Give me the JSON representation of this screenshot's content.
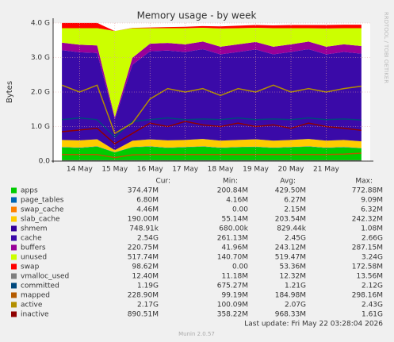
{
  "chart_data": {
    "type": "area",
    "title": "Memory usage - by week",
    "y_label": "Bytes",
    "side_label": "RRDTOOL / TOBI OETIKER",
    "categories": [
      null,
      "14 May",
      null,
      "15 May",
      null,
      "16 May",
      null,
      "17 May",
      null,
      "18 May",
      null,
      "19 May",
      null,
      "20 May",
      null,
      "21 May",
      null,
      null
    ],
    "ylim": [
      0,
      4
    ],
    "yticks": [
      {
        "value": 0,
        "label": "0.0"
      },
      {
        "value": 1,
        "label": "1.0 G"
      },
      {
        "value": 2,
        "label": "2.0 G"
      },
      {
        "value": 3,
        "label": "3.0 G"
      },
      {
        "value": 4,
        "label": "4.0 G"
      }
    ],
    "grid": true,
    "legend_headers": [
      "Cur:",
      "Min:",
      "Avg:",
      "Max:"
    ],
    "series": [
      {
        "name": "apps",
        "color": "#00cc00",
        "kind": "area",
        "values": [
          0.4,
          0.38,
          0.42,
          0.25,
          0.4,
          0.42,
          0.38,
          0.4,
          0.42,
          0.38,
          0.4,
          0.41,
          0.38,
          0.4,
          0.42,
          0.38,
          0.4,
          0.37
        ],
        "cur": "374.47M",
        "min": "200.84M",
        "avg": "429.50M",
        "max": "772.88M"
      },
      {
        "name": "page_tables",
        "color": "#0066b3",
        "kind": "area",
        "values": [
          0.007,
          0.007,
          0.007,
          0.005,
          0.007,
          0.007,
          0.007,
          0.007,
          0.007,
          0.007,
          0.007,
          0.007,
          0.007,
          0.007,
          0.007,
          0.007,
          0.007,
          0.007
        ],
        "cur": "6.80M",
        "min": "4.16M",
        "avg": "6.27M",
        "max": "9.09M"
      },
      {
        "name": "swap_cache",
        "color": "#ff8000",
        "kind": "area",
        "values": [
          0.004,
          0.004,
          0.004,
          0,
          0.002,
          0.003,
          0.004,
          0.004,
          0.004,
          0.004,
          0.004,
          0.004,
          0.004,
          0.004,
          0.004,
          0.004,
          0.004,
          0.004
        ],
        "cur": "4.46M",
        "min": "0.00",
        "avg": "2.15M",
        "max": "6.32M"
      },
      {
        "name": "slab_cache",
        "color": "#ffcc00",
        "kind": "area",
        "values": [
          0.2,
          0.21,
          0.2,
          0.06,
          0.18,
          0.2,
          0.21,
          0.2,
          0.21,
          0.2,
          0.2,
          0.21,
          0.2,
          0.2,
          0.21,
          0.2,
          0.2,
          0.19
        ],
        "cur": "190.00M",
        "min": "55.14M",
        "avg": "203.54M",
        "max": "242.32M"
      },
      {
        "name": "shmem",
        "color": "#330099",
        "kind": "area",
        "values": [
          0.001,
          0.001,
          0.001,
          0.001,
          0.001,
          0.001,
          0.001,
          0.001,
          0.001,
          0.001,
          0.001,
          0.001,
          0.001,
          0.001,
          0.001,
          0.001,
          0.001,
          0.001
        ],
        "cur": "748.91k",
        "min": "680.00k",
        "avg": "829.44k",
        "max": "1.08M"
      },
      {
        "name": "cache",
        "color": "#3a0aa8",
        "kind": "area",
        "values": [
          2.6,
          2.55,
          2.5,
          0.9,
          2.2,
          2.55,
          2.6,
          2.55,
          2.6,
          2.5,
          2.55,
          2.6,
          2.5,
          2.55,
          2.6,
          2.5,
          2.55,
          2.54
        ],
        "cur": "2.54G",
        "min": "261.13M",
        "avg": "2.45G",
        "max": "2.66G"
      },
      {
        "name": "buffers",
        "color": "#990099",
        "kind": "area",
        "values": [
          0.22,
          0.22,
          0.22,
          0.05,
          0.2,
          0.22,
          0.22,
          0.22,
          0.22,
          0.22,
          0.22,
          0.22,
          0.22,
          0.22,
          0.22,
          0.22,
          0.22,
          0.22
        ],
        "cur": "220.75M",
        "min": "41.96M",
        "avg": "243.12M",
        "max": "287.15M"
      },
      {
        "name": "unused",
        "color": "#ccff00",
        "kind": "area",
        "values": [
          0.42,
          0.48,
          0.5,
          2.5,
          0.86,
          0.45,
          0.43,
          0.47,
          0.4,
          0.53,
          0.47,
          0.41,
          0.54,
          0.47,
          0.39,
          0.53,
          0.47,
          0.52
        ],
        "cur": "517.74M",
        "min": "140.70M",
        "avg": "519.47M",
        "max": "3.24G"
      },
      {
        "name": "swap",
        "color": "#ff0000",
        "kind": "area",
        "values": [
          0.15,
          0.15,
          0.15,
          0,
          0.01,
          0.02,
          0.03,
          0.04,
          0.05,
          0.06,
          0.07,
          0.08,
          0.08,
          0.09,
          0.09,
          0.1,
          0.1,
          0.1
        ],
        "cur": "98.62M",
        "min": "0.00",
        "avg": "53.36M",
        "max": "172.58M"
      },
      {
        "name": "vmalloc_used",
        "color": "#808080",
        "kind": "line",
        "values": [
          0.012,
          0.012,
          0.012,
          0.011,
          0.012,
          0.012,
          0.012,
          0.012,
          0.012,
          0.012,
          0.012,
          0.012,
          0.012,
          0.012,
          0.012,
          0.012,
          0.012,
          0.012
        ],
        "cur": "12.40M",
        "min": "11.18M",
        "avg": "12.32M",
        "max": "13.56M"
      },
      {
        "name": "committed",
        "color": "#00487d",
        "kind": "line",
        "values": [
          1.2,
          1.25,
          1.2,
          0.7,
          1.15,
          1.2,
          1.25,
          1.2,
          1.22,
          1.2,
          1.25,
          1.2,
          1.22,
          1.2,
          1.25,
          1.2,
          1.22,
          1.19
        ],
        "cur": "1.19G",
        "min": "675.27M",
        "avg": "1.21G",
        "max": "2.12G"
      },
      {
        "name": "mapped",
        "color": "#b35a00",
        "kind": "line",
        "values": [
          0.19,
          0.19,
          0.19,
          0.1,
          0.18,
          0.19,
          0.19,
          0.19,
          0.19,
          0.19,
          0.19,
          0.19,
          0.19,
          0.19,
          0.19,
          0.19,
          0.2,
          0.23
        ],
        "cur": "228.90M",
        "min": "99.19M",
        "avg": "184.98M",
        "max": "298.16M"
      },
      {
        "name": "active",
        "color": "#b38f00",
        "kind": "line",
        "values": [
          2.2,
          2.0,
          2.2,
          0.8,
          1.1,
          1.8,
          2.1,
          2.0,
          2.1,
          1.9,
          2.1,
          2.0,
          2.2,
          2.0,
          2.1,
          2.0,
          2.1,
          2.17
        ],
        "cur": "2.17G",
        "min": "100.09M",
        "avg": "2.07G",
        "max": "2.43G"
      },
      {
        "name": "inactive",
        "color": "#8f0000",
        "kind": "line",
        "values": [
          0.85,
          0.9,
          0.95,
          0.5,
          0.8,
          1.1,
          1.0,
          1.15,
          1.05,
          1.0,
          1.1,
          1.0,
          1.05,
          0.95,
          1.1,
          1.0,
          0.95,
          0.89
        ],
        "cur": "890.51M",
        "min": "358.22M",
        "avg": "968.33M",
        "max": "1.61G"
      }
    ],
    "last_update": "Last update: Fri May 22 03:28:04 2026",
    "footer": "Munin 2.0.57"
  }
}
